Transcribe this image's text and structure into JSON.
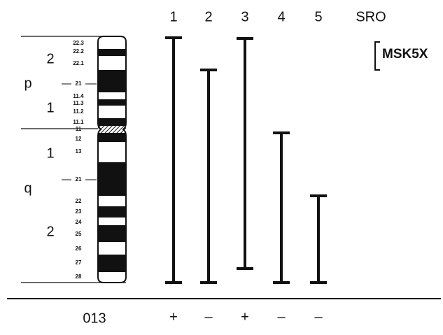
{
  "header": {
    "columns": [
      "1",
      "2",
      "3",
      "4",
      "5"
    ],
    "sro": "SRO",
    "probe": "MSK5X"
  },
  "ideogram": {
    "arms": {
      "p": "p",
      "q": "q"
    },
    "regions": [
      "2",
      "1",
      "1",
      "2"
    ],
    "bands": [
      "22.3",
      "22.2",
      "22.1",
      "21",
      "11.4",
      "11.3",
      "11.2",
      "11.1",
      "11",
      "12",
      "13",
      "21",
      "22",
      "23",
      "24",
      "25",
      "26",
      "27",
      "28"
    ]
  },
  "row": {
    "label": "013",
    "signs": [
      "+",
      "–",
      "+",
      "–",
      "–"
    ]
  }
}
